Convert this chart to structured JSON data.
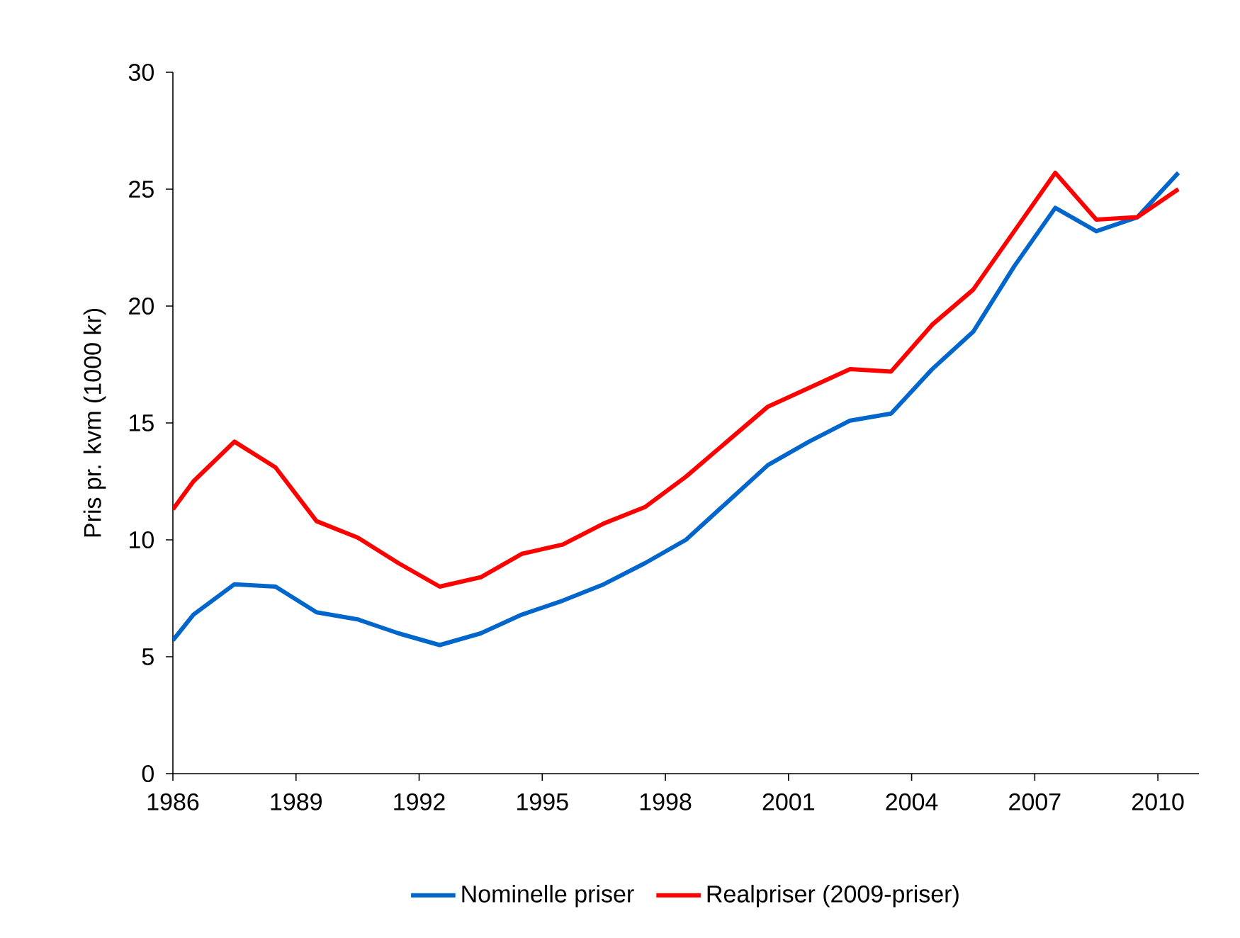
{
  "chart_data": {
    "type": "line",
    "ylabel": "Pris pr. kvm (1000 kr)",
    "x": [
      1986,
      1986.5,
      1987.5,
      1988.5,
      1989.5,
      1990.5,
      1991.5,
      1992.5,
      1993.5,
      1994.5,
      1995.5,
      1996.5,
      1997.5,
      1998.5,
      1999.5,
      2000.5,
      2001.5,
      2002.5,
      2003.5,
      2004.5,
      2005.5,
      2006.5,
      2007.5,
      2008.5,
      2009.5,
      2010.5
    ],
    "series": [
      {
        "name": "Nominelle priser",
        "color": "#0066cc",
        "values": [
          5.7,
          6.8,
          8.1,
          8.0,
          6.9,
          6.6,
          6.0,
          5.5,
          6.0,
          6.8,
          7.4,
          8.1,
          9.0,
          10.0,
          11.6,
          13.2,
          14.2,
          15.1,
          15.4,
          17.3,
          18.9,
          21.7,
          24.2,
          23.2,
          23.8,
          25.7
        ]
      },
      {
        "name": "Realpriser (2009-priser)",
        "color": "#ff0000",
        "values": [
          11.3,
          12.5,
          14.2,
          13.1,
          10.8,
          10.1,
          9.0,
          8.0,
          8.4,
          9.4,
          9.8,
          10.7,
          11.4,
          12.7,
          14.2,
          15.7,
          16.5,
          17.3,
          17.2,
          19.2,
          20.7,
          23.2,
          25.7,
          23.7,
          23.8,
          25.0
        ]
      }
    ],
    "xlim": [
      1986,
      2011
    ],
    "ylim": [
      0,
      30
    ],
    "xticks": [
      1986,
      1989,
      1992,
      1995,
      1998,
      2001,
      2004,
      2007,
      2010
    ],
    "yticks": [
      0,
      5,
      10,
      15,
      20,
      25,
      30
    ],
    "legend": "bottom",
    "marker": "none",
    "line_style": "solid"
  }
}
